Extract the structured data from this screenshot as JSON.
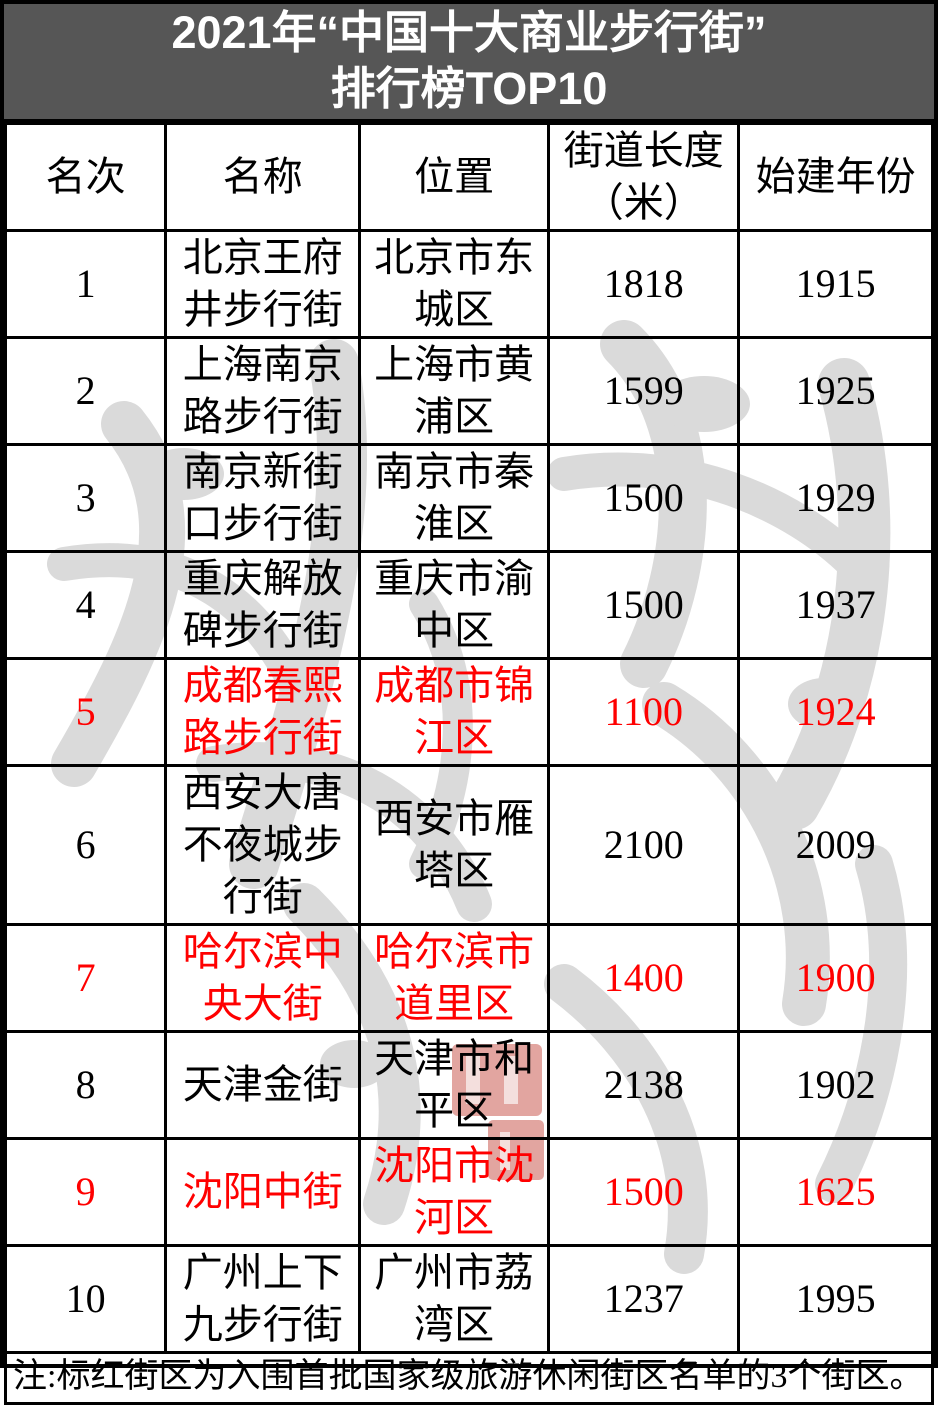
{
  "title": {
    "line1": "2021年“中国十大商业步行街”",
    "line2": "排行榜TOP10"
  },
  "table": {
    "headers": [
      "名次",
      "名称",
      "位置",
      "街道长度（米）",
      "始建年份"
    ],
    "rows": [
      {
        "rank": "1",
        "name": "北京王府井步行街",
        "location": "北京市东城区",
        "length": "1818",
        "year": "1915",
        "highlight": false
      },
      {
        "rank": "2",
        "name": "上海南京路步行街",
        "location": "上海市黄浦区",
        "length": "1599",
        "year": "1925",
        "highlight": false
      },
      {
        "rank": "3",
        "name": "南京新街口步行街",
        "location": "南京市秦淮区",
        "length": "1500",
        "year": "1929",
        "highlight": false
      },
      {
        "rank": "4",
        "name": "重庆解放碑步行街",
        "location": "重庆市渝中区",
        "length": "1500",
        "year": "1937",
        "highlight": false
      },
      {
        "rank": "5",
        "name": "成都春熙路步行街",
        "location": "成都市锦江区",
        "length": "1100",
        "year": "1924",
        "highlight": true
      },
      {
        "rank": "6",
        "name": "西安大唐不夜城步行街",
        "location": "西安市雁塔区",
        "length": "2100",
        "year": "2009",
        "highlight": false
      },
      {
        "rank": "7",
        "name": "哈尔滨中央大街",
        "location": "哈尔滨市道里区",
        "length": "1400",
        "year": "1900",
        "highlight": true
      },
      {
        "rank": "8",
        "name": "天津金街",
        "location": "天津市和平区",
        "length": "2138",
        "year": "1902",
        "highlight": false
      },
      {
        "rank": "9",
        "name": "沈阳中街",
        "location": "沈阳市沈河区",
        "length": "1500",
        "year": "1625",
        "highlight": true
      },
      {
        "rank": "10",
        "name": "广州上下九步行街",
        "location": "广州市荔湾区",
        "length": "1237",
        "year": "1995",
        "highlight": false
      }
    ]
  },
  "footnote": "注:标红街区为入围首批国家级旅游休闲街区名单的3个街区。",
  "colors": {
    "title_bg": "#565656",
    "title_text": "#ffffff",
    "highlight_red": "#ff0000",
    "border_black": "#000000",
    "watermark_gray": "#d9d9d9",
    "seal_red": "#c0392f"
  },
  "chart_data": {
    "type": "table",
    "title": "2021年“中国十大商业步行街”排行榜TOP10",
    "columns": [
      "名次",
      "名称",
      "位置",
      "街道长度（米）",
      "始建年份"
    ],
    "rows": [
      [
        1,
        "北京王府井步行街",
        "北京市东城区",
        1818,
        1915
      ],
      [
        2,
        "上海南京路步行街",
        "上海市黄浦区",
        1599,
        1925
      ],
      [
        3,
        "南京新街口步行街",
        "南京市秦淮区",
        1500,
        1929
      ],
      [
        4,
        "重庆解放碑步行街",
        "重庆市渝中区",
        1500,
        1937
      ],
      [
        5,
        "成都春熙路步行街",
        "成都市锦江区",
        1100,
        1924
      ],
      [
        6,
        "西安大唐不夜城步行街",
        "西安市雁塔区",
        2100,
        2009
      ],
      [
        7,
        "哈尔滨中央大街",
        "哈尔滨市道里区",
        1400,
        1900
      ],
      [
        8,
        "天津金街",
        "天津市和平区",
        2138,
        1902
      ],
      [
        9,
        "沈阳中街",
        "沈阳市沈河区",
        1500,
        1625
      ],
      [
        10,
        "广州上下九步行街",
        "广州市荔湾区",
        1237,
        1995
      ]
    ],
    "highlighted_ranks": [
      5,
      7,
      9
    ],
    "note": "注:标红街区为入围首批国家级旅游休闲街区名单的3个街区。"
  }
}
